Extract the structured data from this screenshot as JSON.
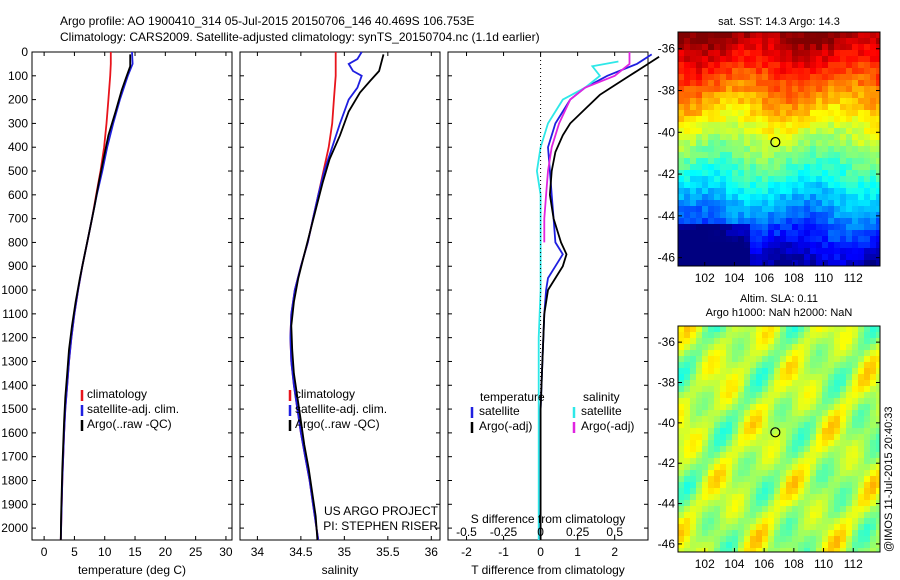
{
  "header": {
    "title_line1": "Argo profile: AO 1900410_314 05-Jul-2015 20150706_146 40.469S 106.753E",
    "title_line2": "Climatology: CARS2009. Satellite-adjusted climatology: synTS_20150704.nc (1.1d earlier)"
  },
  "footer": {
    "credit": "@IMOS 11-Jul-2015 20:40:33"
  },
  "colors": {
    "climatology": "#e8141c",
    "satellite": "#1f1fe0",
    "argo": "#000000",
    "sal_satellite": "#2ee8e8",
    "sal_argo": "#e024e0"
  },
  "chart_data": [
    {
      "type": "line",
      "id": "temperature-profile",
      "xlabel": "temperature (deg C)",
      "ylabel": "",
      "xlim": [
        -2,
        31
      ],
      "ylim": [
        2050,
        0
      ],
      "xticks": [
        0,
        5,
        10,
        15,
        20,
        25,
        30
      ],
      "yticks": [
        0,
        100,
        200,
        300,
        400,
        500,
        600,
        700,
        800,
        900,
        1000,
        1100,
        1200,
        1300,
        1400,
        1500,
        1600,
        1700,
        1800,
        1900,
        2000
      ],
      "legend": {
        "position": "bottom-right",
        "entries": [
          "climatology",
          "satellite-adj. clim.",
          "Argo(..raw -QC)"
        ]
      },
      "series": [
        {
          "name": "climatology",
          "color": "#e8141c",
          "points": [
            [
              11,
              0
            ],
            [
              11,
              50
            ],
            [
              10.9,
              100
            ],
            [
              10.6,
              200
            ],
            [
              10.3,
              300
            ],
            [
              9.9,
              400
            ],
            [
              9.3,
              500
            ],
            [
              8.6,
              600
            ],
            [
              7.9,
              700
            ],
            [
              7.1,
              800
            ],
            [
              6.3,
              900
            ],
            [
              5.6,
              1000
            ],
            [
              5,
              1100
            ],
            [
              4.5,
              1200
            ],
            [
              4.1,
              1300
            ],
            [
              3.8,
              1400
            ],
            [
              3.5,
              1500
            ],
            [
              3.3,
              1600
            ],
            [
              3.15,
              1700
            ],
            [
              3,
              1800
            ],
            [
              2.9,
              1900
            ],
            [
              2.8,
              2000
            ],
            [
              2.75,
              2050
            ]
          ]
        },
        {
          "name": "satellite-adj. clim.",
          "color": "#1f1fe0",
          "points": [
            [
              14.5,
              0
            ],
            [
              14.6,
              50
            ],
            [
              13.8,
              100
            ],
            [
              12.5,
              200
            ],
            [
              11.4,
              300
            ],
            [
              10.4,
              400
            ],
            [
              9.6,
              500
            ],
            [
              8.7,
              600
            ],
            [
              7.9,
              700
            ],
            [
              7.1,
              800
            ],
            [
              6.3,
              900
            ],
            [
              5.6,
              1000
            ],
            [
              5,
              1100
            ],
            [
              4.5,
              1200
            ],
            [
              4.1,
              1300
            ],
            [
              3.8,
              1400
            ],
            [
              3.5,
              1500
            ],
            [
              3.3,
              1600
            ],
            [
              3.15,
              1700
            ],
            [
              3,
              1800
            ],
            [
              2.9,
              1900
            ],
            [
              2.8,
              2000
            ],
            [
              2.75,
              2050
            ]
          ]
        },
        {
          "name": "Argo(..raw -QC)",
          "color": "#000000",
          "points": [
            [
              14.2,
              10
            ],
            [
              14.2,
              60
            ],
            [
              13.5,
              110
            ],
            [
              12.8,
              160
            ],
            [
              11.8,
              250
            ],
            [
              10.6,
              350
            ],
            [
              9.8,
              450
            ],
            [
              9,
              550
            ],
            [
              8.3,
              650
            ],
            [
              7.5,
              750
            ],
            [
              6.7,
              850
            ],
            [
              5.9,
              950
            ],
            [
              5.2,
              1050
            ],
            [
              4.6,
              1150
            ],
            [
              4.1,
              1250
            ],
            [
              3.8,
              1350
            ],
            [
              3.5,
              1450
            ],
            [
              3.3,
              1550
            ],
            [
              3.15,
              1650
            ],
            [
              3,
              1750
            ],
            [
              2.9,
              1850
            ],
            [
              2.8,
              1950
            ],
            [
              2.75,
              2050
            ]
          ]
        }
      ]
    },
    {
      "type": "line",
      "id": "salinity-profile",
      "xlabel": "salinity",
      "xlim": [
        33.8,
        36.1
      ],
      "ylim": [
        2050,
        0
      ],
      "xticks": [
        34,
        34.5,
        35,
        35.5,
        36
      ],
      "xticklabels": [
        "34",
        "34.5",
        "35",
        "35.5",
        "36"
      ],
      "legend": {
        "position": "bottom-right",
        "entries": [
          "climatology",
          "satellite-adj. clim.",
          "Argo(..raw -QC)"
        ]
      },
      "annotation_line1": "US ARGO PROJECT",
      "annotation_line2": "PI: STEPHEN RISER",
      "series": [
        {
          "name": "climatology",
          "color": "#e8141c",
          "points": [
            [
              34.9,
              0
            ],
            [
              34.9,
              100
            ],
            [
              34.88,
              200
            ],
            [
              34.86,
              300
            ],
            [
              34.82,
              400
            ],
            [
              34.76,
              500
            ],
            [
              34.7,
              600
            ],
            [
              34.64,
              700
            ],
            [
              34.58,
              800
            ],
            [
              34.5,
              900
            ],
            [
              34.43,
              1000
            ],
            [
              34.39,
              1100
            ],
            [
              34.38,
              1200
            ],
            [
              34.39,
              1300
            ],
            [
              34.42,
              1400
            ],
            [
              34.46,
              1500
            ],
            [
              34.5,
              1600
            ],
            [
              34.55,
              1700
            ],
            [
              34.6,
              1800
            ],
            [
              34.64,
              1900
            ],
            [
              34.68,
              2000
            ],
            [
              34.7,
              2050
            ]
          ]
        },
        {
          "name": "satellite-adj. clim.",
          "color": "#1f1fe0",
          "points": [
            [
              35.2,
              0
            ],
            [
              35.15,
              30
            ],
            [
              35.05,
              50
            ],
            [
              35.1,
              80
            ],
            [
              35.2,
              100
            ],
            [
              35.15,
              150
            ],
            [
              35.05,
              200
            ],
            [
              34.95,
              300
            ],
            [
              34.86,
              400
            ],
            [
              34.77,
              500
            ],
            [
              34.7,
              600
            ],
            [
              34.64,
              700
            ],
            [
              34.58,
              800
            ],
            [
              34.5,
              900
            ],
            [
              34.43,
              1000
            ],
            [
              34.39,
              1100
            ],
            [
              34.38,
              1200
            ],
            [
              34.39,
              1300
            ],
            [
              34.42,
              1400
            ],
            [
              34.46,
              1500
            ],
            [
              34.5,
              1600
            ],
            [
              34.55,
              1700
            ],
            [
              34.6,
              1800
            ],
            [
              34.64,
              1900
            ],
            [
              34.68,
              2000
            ],
            [
              34.7,
              2050
            ]
          ]
        },
        {
          "name": "Argo(..raw -QC)",
          "color": "#000000",
          "points": [
            [
              35.45,
              10
            ],
            [
              35.4,
              80
            ],
            [
              35.3,
              120
            ],
            [
              35.18,
              170
            ],
            [
              35.05,
              250
            ],
            [
              34.95,
              350
            ],
            [
              34.83,
              450
            ],
            [
              34.75,
              550
            ],
            [
              34.68,
              650
            ],
            [
              34.61,
              750
            ],
            [
              34.54,
              850
            ],
            [
              34.47,
              950
            ],
            [
              34.42,
              1050
            ],
            [
              34.39,
              1150
            ],
            [
              34.4,
              1250
            ],
            [
              34.42,
              1350
            ],
            [
              34.46,
              1450
            ],
            [
              34.5,
              1550
            ],
            [
              34.54,
              1650
            ],
            [
              34.59,
              1750
            ],
            [
              34.63,
              1850
            ],
            [
              34.67,
              1950
            ],
            [
              34.69,
              2050
            ]
          ]
        }
      ]
    },
    {
      "type": "line",
      "id": "difference-profile",
      "xlabel": "T difference from climatology",
      "xlabel_top": "S difference from climatology",
      "xlim": [
        -2.5,
        2.9
      ],
      "ylim": [
        2050,
        0
      ],
      "xticks": [
        -2,
        -1,
        0,
        1,
        2
      ],
      "s_ticks_values": [
        -0.5,
        -0.25,
        0,
        0.25,
        0.5
      ],
      "s_ticks_labels": [
        "-0.5",
        "-0.25",
        "0",
        "0.25",
        "0.5"
      ],
      "legend_temperature": {
        "title": "temperature",
        "entries": [
          "satellite",
          "Argo(-adj)"
        ]
      },
      "legend_salinity": {
        "title": "salinity",
        "entries": [
          "satellite",
          "Argo(-adj)"
        ]
      },
      "series": [
        {
          "name": "temperature satellite",
          "color": "#1f1fe0",
          "points": [
            [
              3,
              10
            ],
            [
              2.6,
              50
            ],
            [
              1.8,
              100
            ],
            [
              1.2,
              150
            ],
            [
              0.8,
              200
            ],
            [
              0.4,
              300
            ],
            [
              0.2,
              400
            ],
            [
              0.25,
              500
            ],
            [
              0.3,
              600
            ],
            [
              0.35,
              700
            ],
            [
              0.4,
              800
            ],
            [
              0.6,
              850
            ],
            [
              0.4,
              900
            ],
            [
              0.2,
              950
            ],
            [
              0.15,
              1000
            ],
            [
              0.1,
              1100
            ],
            [
              0.05,
              1300
            ],
            [
              0,
              1500
            ],
            [
              0,
              2050
            ]
          ]
        },
        {
          "name": "temperature Argo(-adj)",
          "color": "#000000",
          "points": [
            [
              3.2,
              20
            ],
            [
              2.4,
              100
            ],
            [
              2,
              140
            ],
            [
              1.6,
              180
            ],
            [
              1.2,
              240
            ],
            [
              0.8,
              300
            ],
            [
              0.6,
              350
            ],
            [
              0.4,
              420
            ],
            [
              0.3,
              500
            ],
            [
              0.25,
              600
            ],
            [
              0.35,
              700
            ],
            [
              0.55,
              800
            ],
            [
              0.7,
              850
            ],
            [
              0.6,
              900
            ],
            [
              0.4,
              950
            ],
            [
              0.2,
              1000
            ],
            [
              0.1,
              1100
            ],
            [
              0.05,
              1300
            ],
            [
              0,
              1500
            ],
            [
              0,
              2050
            ]
          ]
        },
        {
          "name": "salinity satellite",
          "color": "#2ee8e8",
          "points": [
            [
              2.1,
              40
            ],
            [
              1.4,
              60
            ],
            [
              1.6,
              100
            ],
            [
              1.2,
              150
            ],
            [
              0.6,
              200
            ],
            [
              0.2,
              300
            ],
            [
              0,
              400
            ],
            [
              -0.1,
              500
            ],
            [
              0,
              600
            ],
            [
              0,
              800
            ],
            [
              0,
              1000
            ],
            [
              -0.05,
              1200
            ],
            [
              -0.05,
              1500
            ],
            [
              -0.05,
              1800
            ],
            [
              -0.05,
              2050
            ]
          ]
        },
        {
          "name": "salinity Argo(-adj)",
          "color": "#e024e0",
          "points": [
            [
              2.4,
              0
            ],
            [
              2.4,
              50
            ],
            [
              2,
              100
            ],
            [
              1.2,
              150
            ],
            [
              0.8,
              200
            ],
            [
              0.5,
              300
            ],
            [
              0.3,
              400
            ],
            [
              0.2,
              500
            ],
            [
              0.15,
              600
            ],
            [
              0.1,
              700
            ],
            [
              0.1,
              800
            ]
          ]
        }
      ]
    },
    {
      "type": "heatmap",
      "id": "sst-map",
      "title": "sat. SST: 14.3  Argo: 14.3",
      "xlim": [
        100.2,
        113.8
      ],
      "ylim": [
        -46.4,
        -35.2
      ],
      "xticks": [
        102,
        104,
        106,
        108,
        110,
        112
      ],
      "yticks": [
        -36,
        -38,
        -40,
        -42,
        -44,
        -46
      ],
      "marker": {
        "lon": 106.753,
        "lat": -40.469
      }
    },
    {
      "type": "heatmap",
      "id": "sla-map",
      "title_line1": "Altim. SLA: 0.11",
      "title_line2": "Argo h1000: NaN h2000: NaN",
      "xlim": [
        100.2,
        113.8
      ],
      "ylim": [
        -46.4,
        -35.2
      ],
      "xticks": [
        102,
        104,
        106,
        108,
        110,
        112
      ],
      "yticks": [
        -36,
        -38,
        -40,
        -42,
        -44,
        -46
      ],
      "marker": {
        "lon": 106.753,
        "lat": -40.469
      }
    }
  ]
}
